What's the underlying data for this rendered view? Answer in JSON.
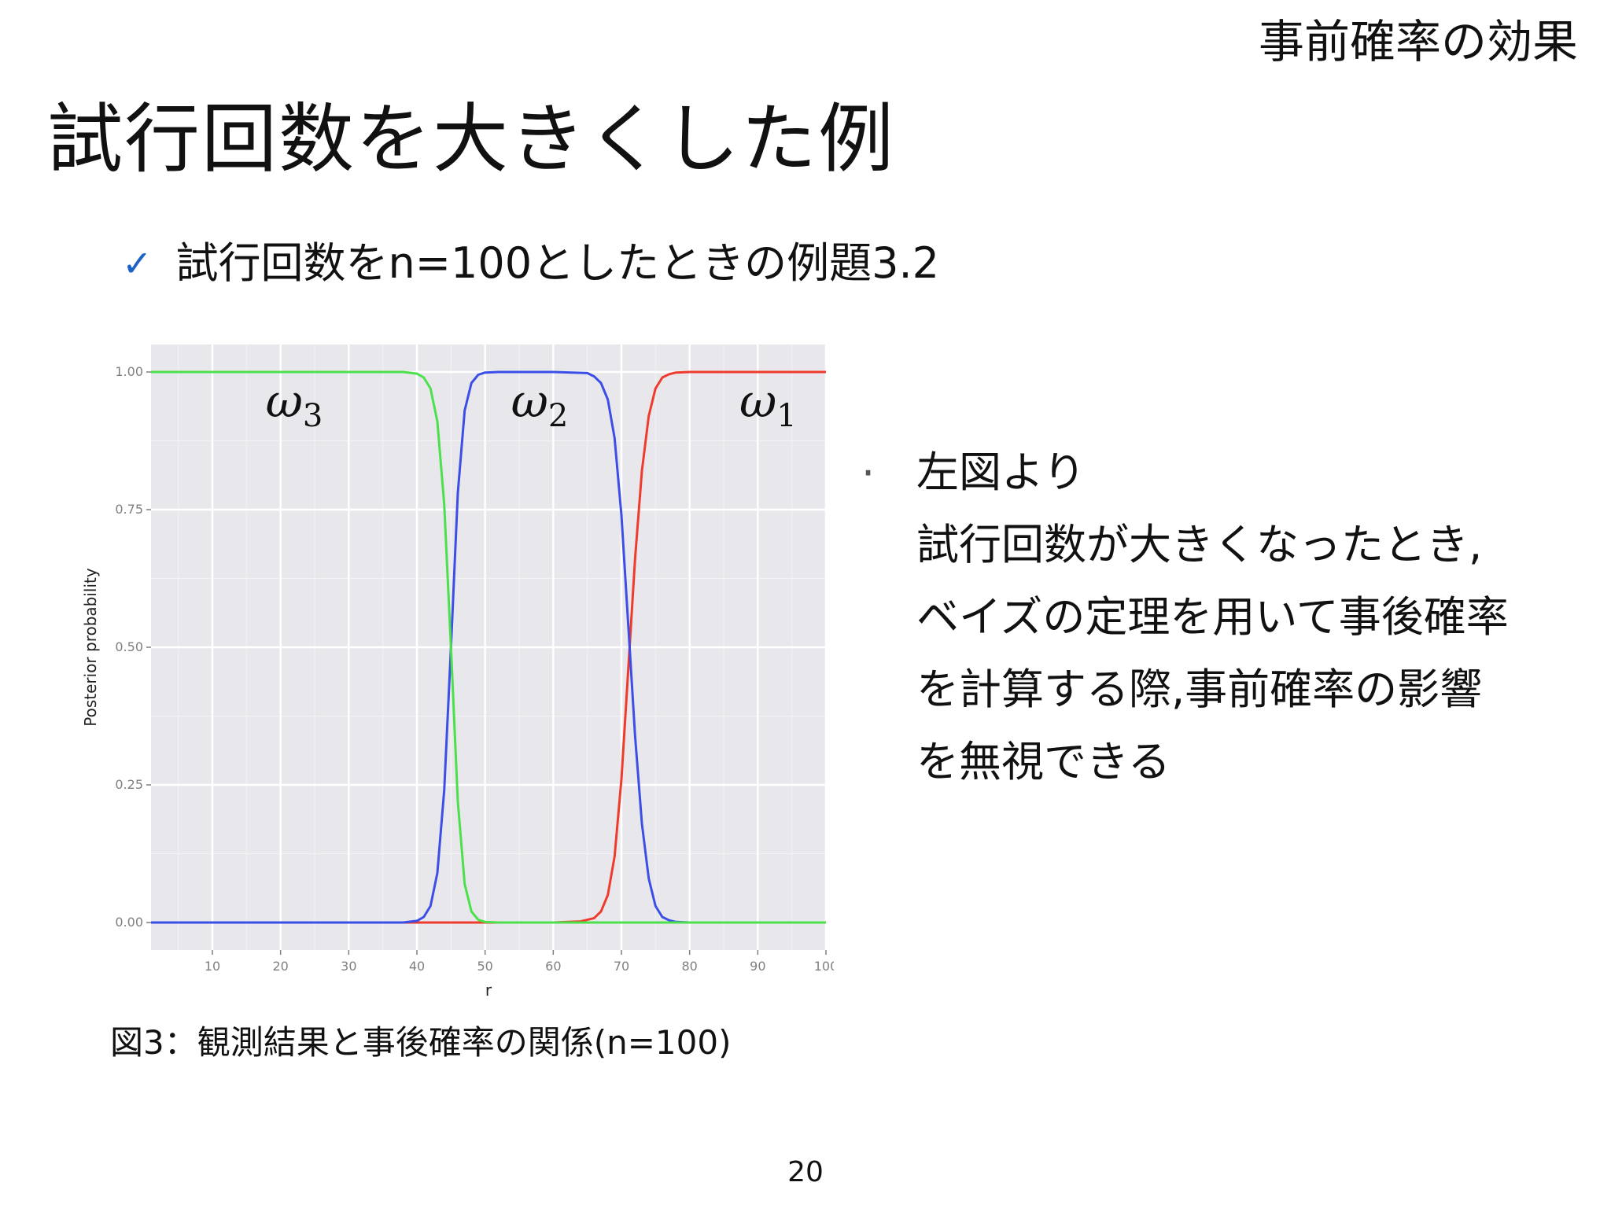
{
  "header": {
    "section": "事前確率の効果",
    "title": "試行回数を大きくした例"
  },
  "bullet": {
    "icon": "check-icon",
    "text": "試行回数をn=100としたときの例題3.2"
  },
  "note": {
    "marker": "·",
    "head": "左図より",
    "lines": [
      "試行回数が大きくなったとき,",
      "ベイズの定理を用いて事後確率",
      "を計算する際,事前確率の影響",
      "を無視できる"
    ]
  },
  "caption": "図3：観測結果と事後確率の関係(n=100)",
  "page_number": "20",
  "chart_data": {
    "type": "line",
    "xlabel": "r",
    "ylabel": "Posterior probability",
    "xlim": [
      1,
      100
    ],
    "ylim": [
      -0.05,
      1.05
    ],
    "x_ticks": [
      10,
      20,
      30,
      40,
      50,
      60,
      70,
      80,
      90,
      100
    ],
    "y_ticks": [
      0.0,
      0.25,
      0.5,
      0.75,
      1.0
    ],
    "y_tick_labels": [
      "0.00",
      "0.25",
      "0.50",
      "0.75",
      "1.00"
    ],
    "grid": true,
    "background": "#e8e8ec",
    "series": [
      {
        "name": "ω1",
        "base": "ω",
        "sub": "1",
        "color": "#ef3b2c",
        "x": [
          1,
          40,
          60,
          64,
          66,
          67,
          68,
          69,
          70,
          71,
          72,
          73,
          74,
          75,
          76,
          77,
          78,
          80,
          100
        ],
        "y": [
          0,
          0,
          0,
          0.002,
          0.008,
          0.02,
          0.05,
          0.12,
          0.26,
          0.46,
          0.66,
          0.82,
          0.92,
          0.97,
          0.99,
          0.996,
          0.999,
          1.0,
          1.0
        ]
      },
      {
        "name": "ω2",
        "base": "ω",
        "sub": "2",
        "color": "#3b4fe6",
        "x": [
          1,
          38,
          40,
          41,
          42,
          43,
          44,
          45,
          46,
          47,
          48,
          49,
          50,
          52,
          60,
          65,
          66,
          67,
          68,
          69,
          70,
          71,
          72,
          73,
          74,
          75,
          76,
          77,
          78,
          80,
          100
        ],
        "y": [
          0,
          0,
          0.003,
          0.01,
          0.03,
          0.09,
          0.24,
          0.5,
          0.78,
          0.93,
          0.98,
          0.995,
          0.999,
          1.0,
          1.0,
          0.998,
          0.992,
          0.98,
          0.95,
          0.88,
          0.74,
          0.54,
          0.34,
          0.18,
          0.08,
          0.03,
          0.01,
          0.004,
          0.001,
          0,
          0
        ]
      },
      {
        "name": "ω3",
        "base": "ω",
        "sub": "3",
        "color": "#4ce04c",
        "x": [
          1,
          38,
          40,
          41,
          42,
          43,
          44,
          45,
          46,
          47,
          48,
          49,
          50,
          52,
          100
        ],
        "y": [
          1.0,
          1.0,
          0.997,
          0.99,
          0.97,
          0.91,
          0.76,
          0.5,
          0.22,
          0.07,
          0.02,
          0.005,
          0.001,
          0,
          0
        ]
      }
    ],
    "labels": [
      {
        "series": "ω3",
        "x": 22,
        "y": 0.95
      },
      {
        "series": "ω2",
        "x": 58,
        "y": 0.95
      },
      {
        "series": "ω1",
        "x": 91.5,
        "y": 0.95
      }
    ]
  }
}
